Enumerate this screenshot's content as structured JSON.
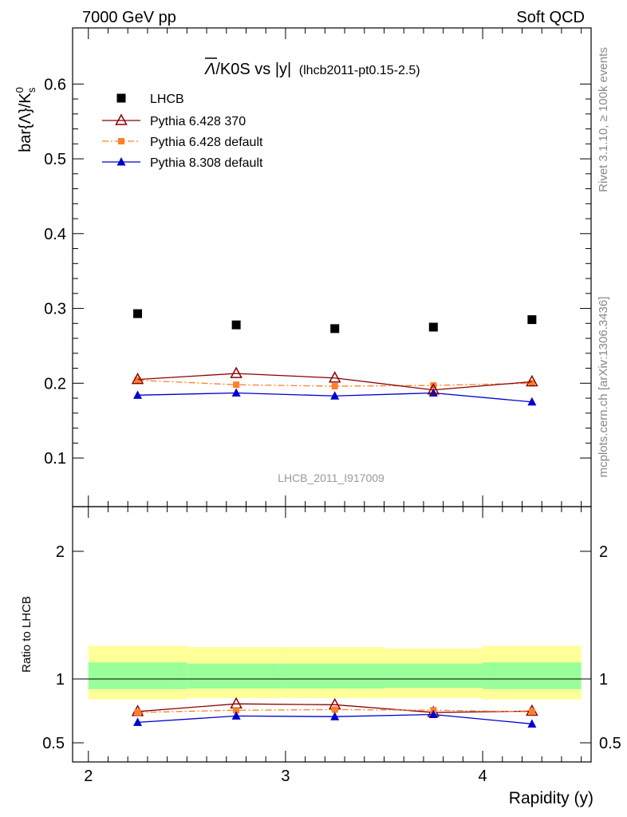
{
  "header": {
    "left": "7000 GeV pp",
    "right": "Soft QCD"
  },
  "plot_title": {
    "main": "/K0S vs |y|",
    "lambda_bar": "Λ",
    "sub": "(lhcb2011-pt0.15-2.5)"
  },
  "y_label": {
    "main": "bar{Λ}/K",
    "sup": "0",
    "sub": "s"
  },
  "ratio_label": "Ratio to LHCB",
  "x_label": "Rapidity (y)",
  "watermark": "LHCB_2011_I917009",
  "side_text": {
    "top": "Rivet 3.1.10, ≥ 100k events",
    "bottom": "mcplots.cern.ch [arXiv:1306.3436]"
  },
  "colors": {
    "data": "#000000",
    "p6_370": "#8b0000",
    "p6_def": "#ff7f2a",
    "p8": "#0000cc",
    "band_outer": "#ffff99",
    "band_inner": "#99ff99"
  },
  "chart_data": [
    {
      "type": "scatter",
      "panel": "main",
      "xlabel": "",
      "ylabel": "bar{Λ}/K0s",
      "xlim": [
        1.92,
        4.55
      ],
      "ylim": [
        0.035,
        0.675
      ],
      "yticks": [
        0.1,
        0.2,
        0.3,
        0.4,
        0.5,
        0.6
      ],
      "ytick_labels": [
        "0.1",
        "0.2",
        "0.3",
        "0.4",
        "0.5",
        "0.6"
      ],
      "x": [
        2.25,
        2.75,
        3.25,
        3.75,
        4.25
      ],
      "legend_position": "top-left",
      "series": [
        {
          "name": "LHCB",
          "style": "data",
          "values": [
            0.293,
            0.278,
            0.273,
            0.275,
            0.285
          ]
        },
        {
          "name": "Pythia 6.428 370",
          "style": "p6_370",
          "values": [
            0.205,
            0.213,
            0.207,
            0.191,
            0.202
          ]
        },
        {
          "name": "Pythia 6.428 default",
          "style": "p6_def",
          "values": [
            0.204,
            0.198,
            0.196,
            0.197,
            0.2
          ]
        },
        {
          "name": "Pythia 8.308 default",
          "style": "p8",
          "values": [
            0.184,
            0.187,
            0.183,
            0.187,
            0.175
          ]
        }
      ]
    },
    {
      "type": "line",
      "panel": "ratio",
      "xlabel": "Rapidity (y)",
      "ylabel": "Ratio to LHCB",
      "xlim": [
        1.92,
        4.55
      ],
      "ylim": [
        0.35,
        2.35
      ],
      "yticks": [
        0.5,
        1,
        2
      ],
      "ytick_labels": [
        "0.5",
        "1",
        "2"
      ],
      "xticks": [
        2,
        3,
        4
      ],
      "xtick_labels": [
        "2",
        "3",
        "4"
      ],
      "x": [
        2.25,
        2.75,
        3.25,
        3.75,
        4.25
      ],
      "bins": [
        [
          2.0,
          2.5
        ],
        [
          2.5,
          3.0
        ],
        [
          3.0,
          3.5
        ],
        [
          3.5,
          4.0
        ],
        [
          4.0,
          4.5
        ]
      ],
      "band_outer": [
        [
          0.84,
          1.26
        ],
        [
          0.85,
          1.25
        ],
        [
          0.85,
          1.25
        ],
        [
          0.85,
          1.24
        ],
        [
          0.84,
          1.26
        ]
      ],
      "band_inner": [
        [
          0.92,
          1.13
        ],
        [
          0.925,
          1.12
        ],
        [
          0.925,
          1.12
        ],
        [
          0.93,
          1.12
        ],
        [
          0.92,
          1.13
        ]
      ],
      "series": [
        {
          "name": "Pythia 6.428 370",
          "style": "p6_370",
          "values": [
            0.745,
            0.805,
            0.798,
            0.738,
            0.748
          ]
        },
        {
          "name": "Pythia 6.428 default",
          "style": "p6_def",
          "values": [
            0.738,
            0.755,
            0.76,
            0.755,
            0.743
          ]
        },
        {
          "name": "Pythia 8.308 default",
          "style": "p8",
          "values": [
            0.66,
            0.71,
            0.705,
            0.722,
            0.648
          ]
        }
      ]
    }
  ]
}
